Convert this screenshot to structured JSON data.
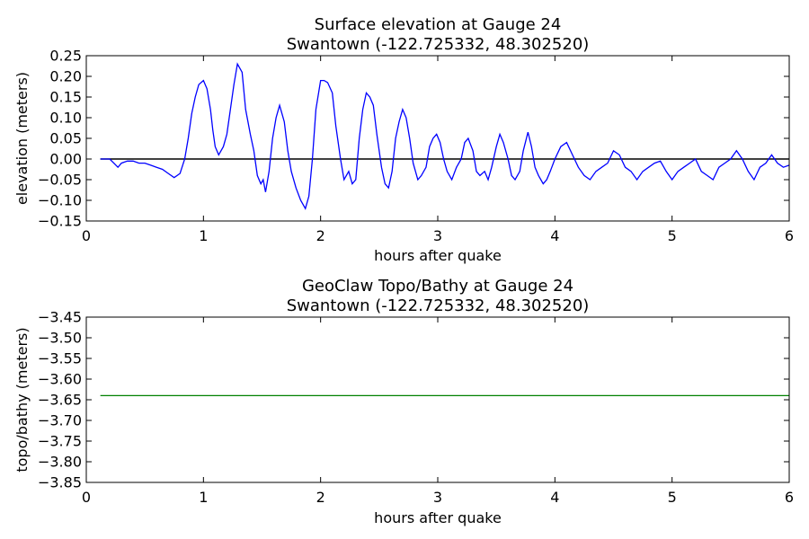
{
  "chart_data": [
    {
      "type": "line",
      "title": "Surface elevation at Gauge 24",
      "subtitle": "Swantown  (-122.725332, 48.302520)",
      "xlabel": "hours after quake",
      "ylabel": "elevation (meters)",
      "xlim": [
        0,
        6
      ],
      "ylim": [
        -0.15,
        0.25
      ],
      "xticks": [
        "0",
        "1",
        "2",
        "3",
        "4",
        "5",
        "6"
      ],
      "yticks": [
        "0.25",
        "0.20",
        "0.15",
        "0.10",
        "0.05",
        "0.00",
        "−0.05",
        "−0.10",
        "−0.15"
      ],
      "reference_line": 0.0,
      "line_color": "#0000ff",
      "reference_color": "#000000",
      "series": [
        {
          "x": [
            0.12,
            0.2,
            0.27,
            0.3,
            0.35,
            0.4,
            0.45,
            0.5,
            0.55,
            0.6,
            0.65,
            0.7,
            0.75,
            0.8,
            0.84,
            0.87,
            0.9,
            0.93,
            0.96,
            1.0,
            1.03,
            1.06,
            1.08,
            1.1,
            1.13,
            1.17,
            1.2,
            1.23,
            1.26,
            1.29,
            1.33,
            1.36,
            1.4,
            1.43,
            1.46,
            1.49,
            1.51,
            1.53,
            1.56,
            1.59,
            1.62,
            1.65,
            1.69,
            1.72,
            1.75,
            1.79,
            1.83,
            1.87,
            1.9,
            1.93,
            1.96,
            2.0,
            2.03,
            2.06,
            2.1,
            2.13,
            2.17,
            2.2,
            2.24,
            2.27,
            2.3,
            2.33,
            2.36,
            2.39,
            2.42,
            2.45,
            2.48,
            2.52,
            2.55,
            2.58,
            2.61,
            2.64,
            2.67,
            2.7,
            2.73,
            2.76,
            2.79,
            2.83,
            2.86,
            2.9,
            2.93,
            2.96,
            2.99,
            3.02,
            3.05,
            3.08,
            3.12,
            3.16,
            3.2,
            3.23,
            3.26,
            3.3,
            3.33,
            3.36,
            3.4,
            3.43,
            3.46,
            3.5,
            3.53,
            3.56,
            3.6,
            3.63,
            3.66,
            3.7,
            3.73,
            3.77,
            3.8,
            3.83,
            3.86,
            3.9,
            3.93,
            3.96,
            4.0,
            4.05,
            4.1,
            4.15,
            4.2,
            4.25,
            4.3,
            4.35,
            4.4,
            4.45,
            4.5,
            4.55,
            4.6,
            4.65,
            4.7,
            4.75,
            4.8,
            4.85,
            4.9,
            4.95,
            5.0,
            5.05,
            5.1,
            5.15,
            5.2,
            5.25,
            5.3,
            5.35,
            5.4,
            5.45,
            5.5,
            5.55,
            5.6,
            5.65,
            5.7,
            5.75,
            5.8,
            5.85,
            5.9,
            5.95,
            6.0
          ],
          "y": [
            0.0,
            0.0,
            -0.02,
            -0.01,
            -0.005,
            -0.005,
            -0.01,
            -0.01,
            -0.015,
            -0.02,
            -0.025,
            -0.035,
            -0.045,
            -0.035,
            0.0,
            0.05,
            0.11,
            0.15,
            0.18,
            0.19,
            0.17,
            0.12,
            0.07,
            0.03,
            0.01,
            0.03,
            0.06,
            0.12,
            0.18,
            0.23,
            0.21,
            0.12,
            0.06,
            0.02,
            -0.04,
            -0.06,
            -0.05,
            -0.08,
            -0.03,
            0.05,
            0.1,
            0.13,
            0.09,
            0.02,
            -0.03,
            -0.07,
            -0.1,
            -0.12,
            -0.09,
            0.0,
            0.12,
            0.19,
            0.19,
            0.185,
            0.16,
            0.08,
            0.0,
            -0.05,
            -0.03,
            -0.06,
            -0.05,
            0.05,
            0.12,
            0.16,
            0.15,
            0.13,
            0.06,
            -0.02,
            -0.06,
            -0.07,
            -0.03,
            0.05,
            0.09,
            0.12,
            0.1,
            0.05,
            -0.01,
            -0.05,
            -0.04,
            -0.02,
            0.03,
            0.05,
            0.06,
            0.04,
            0.0,
            -0.03,
            -0.05,
            -0.02,
            0.0,
            0.04,
            0.05,
            0.02,
            -0.03,
            -0.04,
            -0.03,
            -0.05,
            -0.02,
            0.03,
            0.06,
            0.04,
            0.0,
            -0.04,
            -0.05,
            -0.03,
            0.02,
            0.065,
            0.03,
            -0.02,
            -0.04,
            -0.06,
            -0.05,
            -0.03,
            0.0,
            0.03,
            0.04,
            0.01,
            -0.02,
            -0.04,
            -0.05,
            -0.03,
            -0.02,
            -0.01,
            0.02,
            0.01,
            -0.02,
            -0.03,
            -0.05,
            -0.03,
            -0.02,
            -0.01,
            -0.005,
            -0.03,
            -0.05,
            -0.03,
            -0.02,
            -0.01,
            0.0,
            -0.03,
            -0.04,
            -0.05,
            -0.02,
            -0.01,
            0.0,
            0.02,
            0.0,
            -0.03,
            -0.05,
            -0.02,
            -0.01,
            0.01,
            -0.01,
            -0.02,
            -0.015
          ]
        }
      ]
    },
    {
      "type": "line",
      "title": "GeoClaw Topo/Bathy at Gauge 24",
      "subtitle": "Swantown  (-122.725332, 48.302520)",
      "xlabel": "hours after quake",
      "ylabel": "topo/bathy (meters)",
      "xlim": [
        0,
        6
      ],
      "ylim": [
        -3.85,
        -3.45
      ],
      "xticks": [
        "0",
        "1",
        "2",
        "3",
        "4",
        "5",
        "6"
      ],
      "yticks": [
        "−3.45",
        "−3.50",
        "−3.55",
        "−3.60",
        "−3.65",
        "−3.70",
        "−3.75",
        "−3.80",
        "−3.85"
      ],
      "line_color": "#008000",
      "series": [
        {
          "x": [
            0.12,
            6.0
          ],
          "y": [
            -3.64,
            -3.64
          ]
        }
      ]
    }
  ]
}
